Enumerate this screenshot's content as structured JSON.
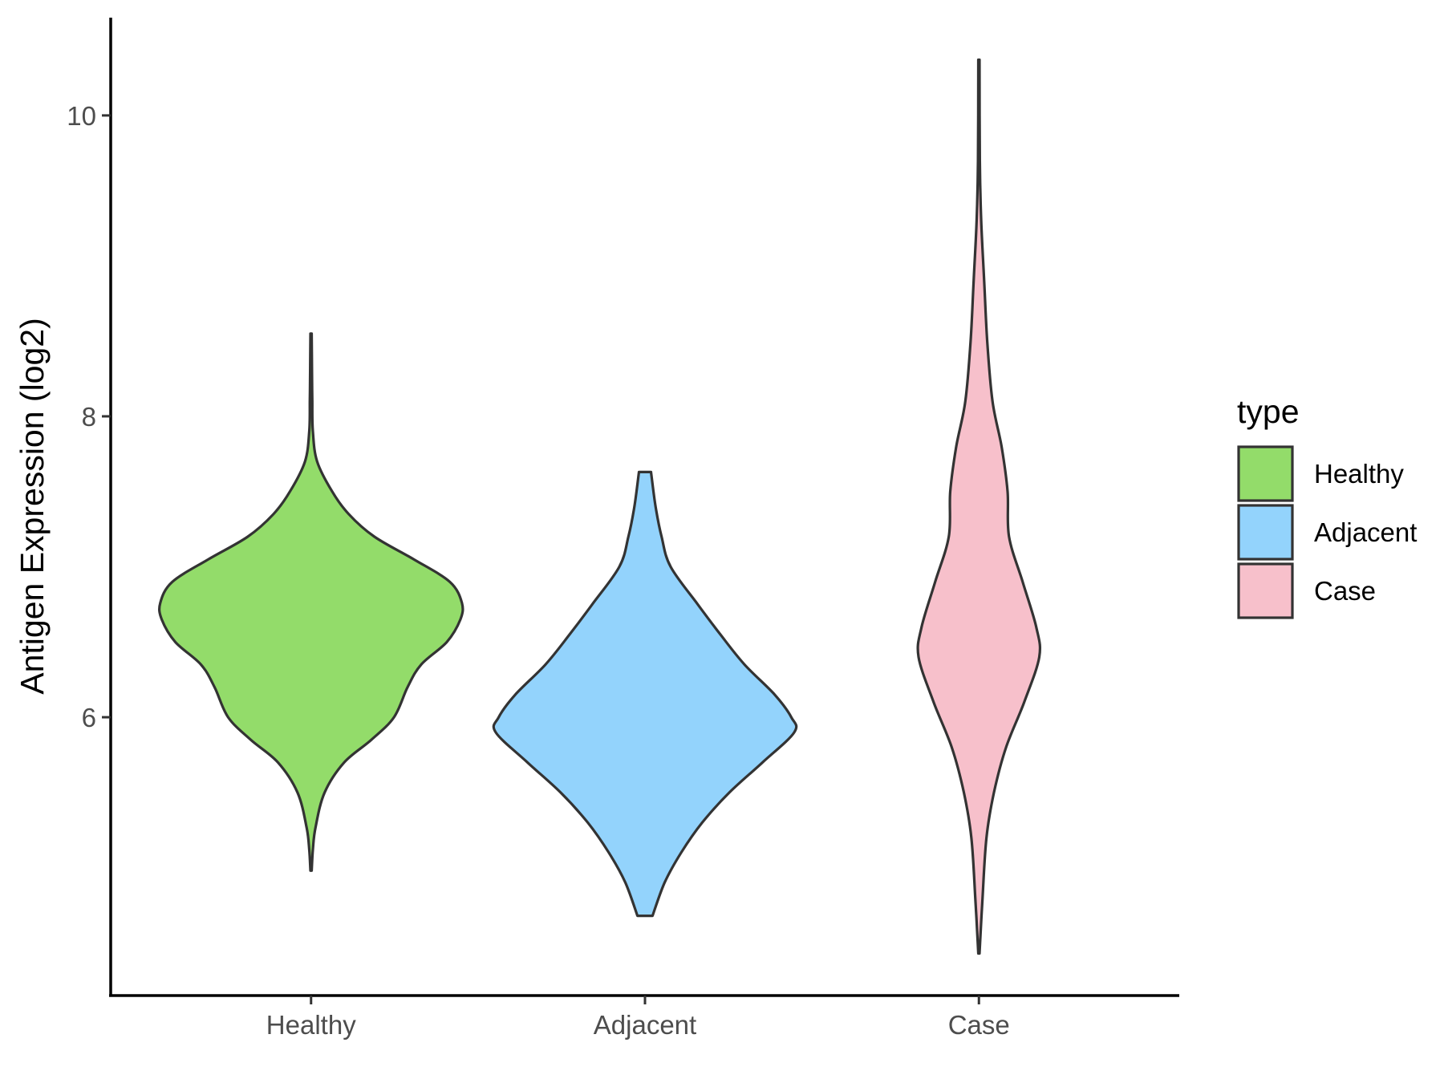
{
  "chart_data": {
    "type": "violin",
    "ylabel": "Antigen Expression (log2)",
    "xlabel": "",
    "categories": [
      "Healthy",
      "Adjacent",
      "Case"
    ],
    "yticks": [
      6,
      8,
      10
    ],
    "ylim": [
      4.15,
      10.65
    ],
    "legend": {
      "title": "type",
      "placement": "right",
      "items": [
        {
          "label": "Healthy",
          "color": "#93DC6A"
        },
        {
          "label": "Adjacent",
          "color": "#93D3FC"
        },
        {
          "label": "Case",
          "color": "#F7C0CB"
        }
      ]
    },
    "series": [
      {
        "name": "Healthy",
        "color": "#93DC6A",
        "min": 4.98,
        "max": 8.55,
        "density": [
          [
            4.98,
            0.004
          ],
          [
            5.12,
            0.012
          ],
          [
            5.27,
            0.03
          ],
          [
            5.5,
            0.09
          ],
          [
            5.7,
            0.22
          ],
          [
            5.85,
            0.4
          ],
          [
            6.0,
            0.55
          ],
          [
            6.2,
            0.64
          ],
          [
            6.35,
            0.73
          ],
          [
            6.5,
            0.9
          ],
          [
            6.65,
            0.99
          ],
          [
            6.76,
            1.0
          ],
          [
            6.9,
            0.92
          ],
          [
            7.05,
            0.68
          ],
          [
            7.2,
            0.42
          ],
          [
            7.35,
            0.25
          ],
          [
            7.5,
            0.14
          ],
          [
            7.7,
            0.04
          ],
          [
            7.9,
            0.012
          ],
          [
            8.1,
            0.008
          ],
          [
            8.3,
            0.006
          ],
          [
            8.55,
            0.004
          ]
        ]
      },
      {
        "name": "Adjacent",
        "color": "#93D3FC",
        "min": 4.68,
        "max": 7.63,
        "density": [
          [
            4.68,
            0.05
          ],
          [
            4.9,
            0.13
          ],
          [
            5.1,
            0.24
          ],
          [
            5.3,
            0.38
          ],
          [
            5.5,
            0.56
          ],
          [
            5.7,
            0.78
          ],
          [
            5.9,
            0.99
          ],
          [
            6.0,
            0.97
          ],
          [
            6.15,
            0.86
          ],
          [
            6.35,
            0.66
          ],
          [
            6.55,
            0.5
          ],
          [
            6.75,
            0.35
          ],
          [
            7.0,
            0.17
          ],
          [
            7.2,
            0.11
          ],
          [
            7.4,
            0.07
          ],
          [
            7.63,
            0.04
          ]
        ]
      },
      {
        "name": "Case",
        "color": "#F7C0CB",
        "min": 4.43,
        "max": 10.37,
        "density": [
          [
            4.43,
            0.004
          ],
          [
            4.8,
            0.024
          ],
          [
            5.2,
            0.05
          ],
          [
            5.5,
            0.1
          ],
          [
            5.8,
            0.18
          ],
          [
            6.1,
            0.3
          ],
          [
            6.4,
            0.4
          ],
          [
            6.6,
            0.38
          ],
          [
            6.9,
            0.29
          ],
          [
            7.2,
            0.2
          ],
          [
            7.5,
            0.19
          ],
          [
            7.8,
            0.15
          ],
          [
            8.1,
            0.09
          ],
          [
            8.5,
            0.055
          ],
          [
            8.9,
            0.035
          ],
          [
            9.3,
            0.015
          ],
          [
            9.7,
            0.006
          ],
          [
            10.37,
            0.004
          ]
        ]
      }
    ]
  }
}
